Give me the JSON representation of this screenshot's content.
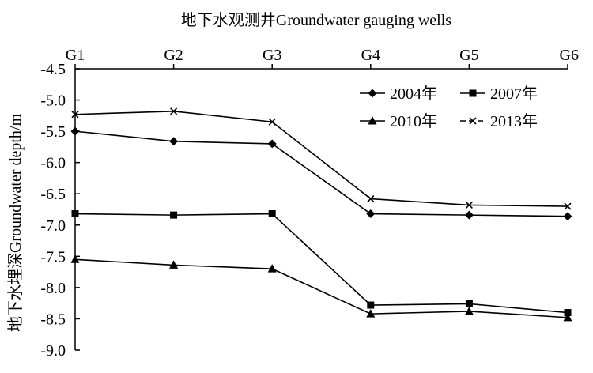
{
  "chart_data": {
    "type": "line",
    "title": "地下水观测井Groundwater gauging wells",
    "xlabel": "地下水观测井Groundwater gauging wells",
    "ylabel": "地下水埋深Groundwater depth/m",
    "categories": [
      "G1",
      "G2",
      "G3",
      "G4",
      "G5",
      "G6"
    ],
    "ylim": [
      -9.0,
      -4.5
    ],
    "yticks": [
      "-4.5",
      "-5.0",
      "-5.5",
      "-6.0",
      "-6.5",
      "-7.0",
      "-7.5",
      "-8.0",
      "-8.5",
      "-9.0"
    ],
    "ytick_values": [
      -4.5,
      -5.0,
      -5.5,
      -6.0,
      -6.5,
      -7.0,
      -7.5,
      -8.0,
      -8.5,
      -9.0
    ],
    "x_axis_position": "top",
    "grid": false,
    "legend_position": "top-right",
    "series": [
      {
        "name": "2004年",
        "marker": "diamond",
        "values": [
          -5.5,
          -5.66,
          -5.7,
          -6.82,
          -6.84,
          -6.86
        ]
      },
      {
        "name": "2007年",
        "marker": "square",
        "values": [
          -6.82,
          -6.84,
          -6.82,
          -8.28,
          -8.26,
          -8.4
        ]
      },
      {
        "name": "2010年",
        "marker": "triangle",
        "values": [
          -7.55,
          -7.64,
          -7.7,
          -8.42,
          -8.38,
          -8.48
        ]
      },
      {
        "name": "2013年",
        "marker": "x",
        "values": [
          -5.23,
          -5.18,
          -5.35,
          -6.58,
          -6.68,
          -6.7
        ]
      }
    ]
  }
}
